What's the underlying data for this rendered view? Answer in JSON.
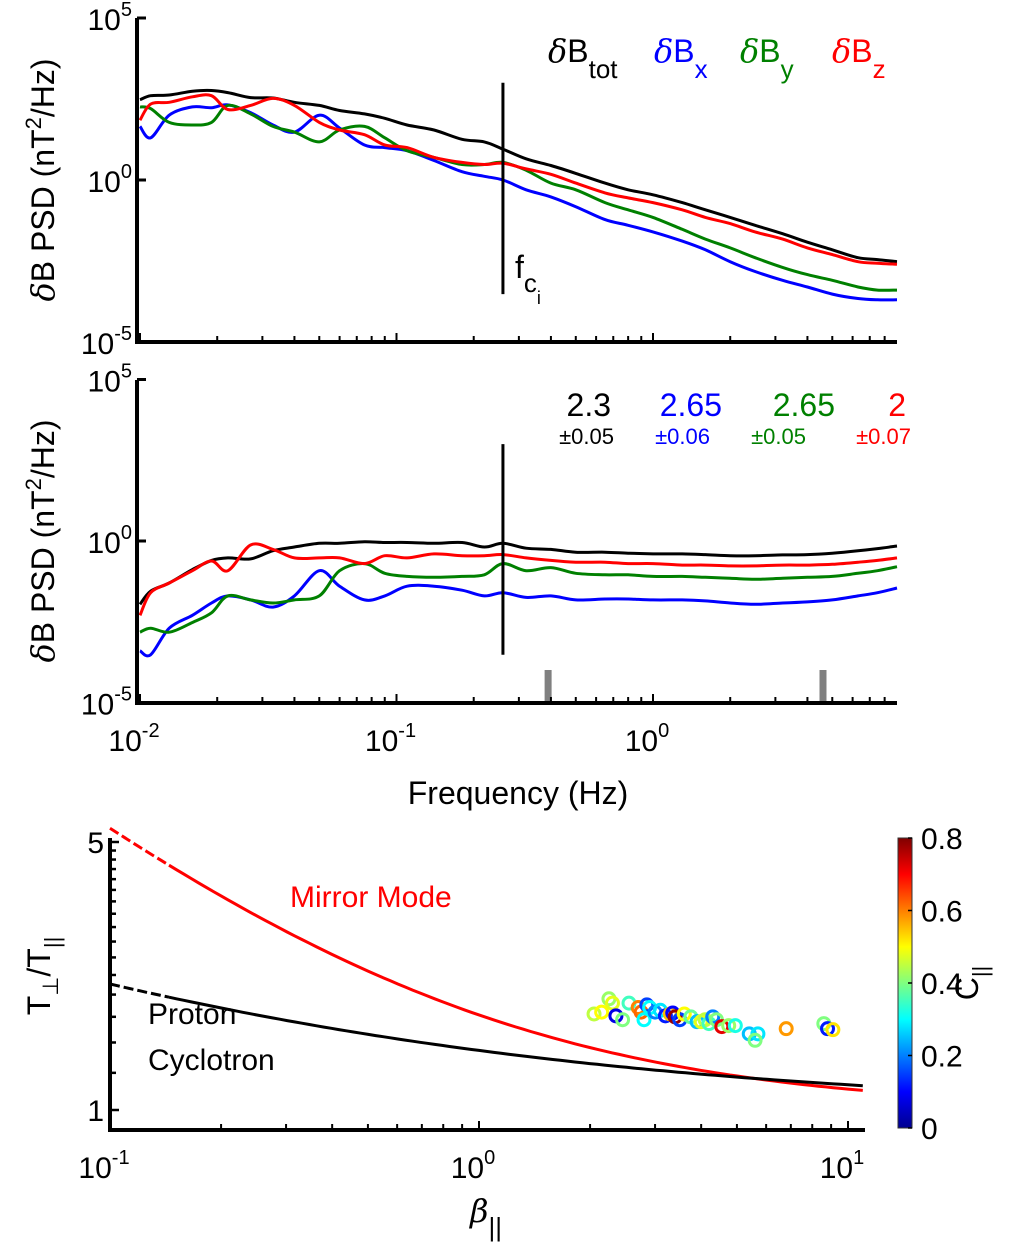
{
  "chart_data": [
    {
      "type": "line",
      "panel": "top",
      "xscale": "log",
      "yscale": "log",
      "xlim": [
        0.0095,
        9
      ],
      "ylim": [
        1e-05,
        100000.0
      ],
      "xlabel": "",
      "ylabel": "δB PSD (nT²/Hz)",
      "ylabel_parts": {
        "delta": "δ",
        "main": "B PSD (nT",
        "sup": "2",
        "tail": "/Hz)"
      },
      "yticks": [
        {
          "value": 100000.0,
          "base": "10",
          "exp": "5"
        },
        {
          "value": 1,
          "base": "10",
          "exp": "0"
        },
        {
          "value": 1e-05,
          "base": "10",
          "exp": "-5"
        }
      ],
      "legend": [
        {
          "delta": "δ",
          "name": "B",
          "sub": "tot",
          "color": "#000000"
        },
        {
          "delta": "δ",
          "name": "B",
          "sub": "x",
          "color": "#0000ff"
        },
        {
          "delta": "δ",
          "name": "B",
          "sub": "y",
          "color": "#008000"
        },
        {
          "delta": "δ",
          "name": "B",
          "sub": "z",
          "color": "#ff0000"
        }
      ],
      "legend_position": "top-right",
      "vline": {
        "x": 0.26,
        "y_range": [
          0.0003,
          1000.0
        ],
        "label_main": "f",
        "label_sub": "c",
        "label_subsub": "i"
      },
      "series": [
        {
          "name": "δBtot",
          "color": "#000000",
          "x": [
            0.0095,
            0.011,
            0.013,
            0.016,
            0.019,
            0.022,
            0.027,
            0.033,
            0.04,
            0.05,
            0.06,
            0.075,
            0.09,
            0.11,
            0.14,
            0.18,
            0.22,
            0.26,
            0.32,
            0.4,
            0.5,
            0.65,
            0.8,
            1.0,
            1.3,
            1.6,
            2.0,
            2.5,
            3.2,
            4.0,
            5.0,
            6.3,
            7.5,
            9.0
          ],
          "y": [
            300,
            400,
            420,
            550,
            580,
            500,
            350,
            340,
            250,
            200,
            140,
            110,
            80,
            50,
            35,
            18,
            15,
            9,
            4.5,
            2.8,
            1.6,
            0.8,
            0.5,
            0.35,
            0.2,
            0.12,
            0.07,
            0.04,
            0.022,
            0.012,
            0.007,
            0.004,
            0.0035,
            0.003
          ]
        },
        {
          "name": "δBx",
          "color": "#0000ff",
          "x": [
            0.0095,
            0.011,
            0.013,
            0.016,
            0.019,
            0.022,
            0.027,
            0.033,
            0.04,
            0.05,
            0.06,
            0.075,
            0.09,
            0.11,
            0.14,
            0.18,
            0.22,
            0.26,
            0.32,
            0.4,
            0.5,
            0.65,
            0.8,
            1.0,
            1.3,
            1.6,
            2.0,
            2.5,
            3.2,
            4.0,
            5.0,
            6.3,
            7.5,
            9.0
          ],
          "y": [
            45,
            20,
            100,
            180,
            170,
            210,
            120,
            50,
            30,
            100,
            40,
            12,
            10,
            8,
            4,
            1.8,
            1.3,
            1.0,
            0.5,
            0.3,
            0.15,
            0.06,
            0.04,
            0.025,
            0.013,
            0.007,
            0.003,
            0.0015,
            0.0008,
            0.0005,
            0.0003,
            0.00022,
            0.0002,
            0.0002
          ]
        },
        {
          "name": "δBy",
          "color": "#008000",
          "x": [
            0.0095,
            0.011,
            0.013,
            0.016,
            0.019,
            0.022,
            0.027,
            0.033,
            0.04,
            0.05,
            0.06,
            0.075,
            0.09,
            0.11,
            0.14,
            0.18,
            0.22,
            0.26,
            0.32,
            0.4,
            0.5,
            0.65,
            0.8,
            1.0,
            1.3,
            1.6,
            2.0,
            2.5,
            3.2,
            4.0,
            5.0,
            6.3,
            7.5,
            9.0
          ],
          "y": [
            180,
            160,
            60,
            50,
            60,
            200,
            110,
            45,
            30,
            15,
            35,
            45,
            20,
            8,
            5,
            3,
            3,
            3.5,
            2.0,
            0.8,
            0.5,
            0.2,
            0.12,
            0.07,
            0.03,
            0.015,
            0.008,
            0.004,
            0.002,
            0.0012,
            0.0008,
            0.0005,
            0.0004,
            0.0004
          ]
        },
        {
          "name": "δBz",
          "color": "#ff0000",
          "x": [
            0.0095,
            0.011,
            0.013,
            0.016,
            0.019,
            0.022,
            0.027,
            0.033,
            0.04,
            0.05,
            0.06,
            0.075,
            0.09,
            0.11,
            0.14,
            0.18,
            0.22,
            0.26,
            0.32,
            0.4,
            0.5,
            0.65,
            0.8,
            1.0,
            1.3,
            1.6,
            2.0,
            2.5,
            3.2,
            4.0,
            5.0,
            6.3,
            7.5,
            9.0
          ],
          "y": [
            70,
            220,
            250,
            370,
            400,
            150,
            200,
            330,
            200,
            60,
            35,
            25,
            12,
            10,
            5,
            3.5,
            3.0,
            3.3,
            2.2,
            1.5,
            0.8,
            0.4,
            0.28,
            0.2,
            0.12,
            0.07,
            0.045,
            0.025,
            0.015,
            0.008,
            0.005,
            0.003,
            0.0027,
            0.0025
          ]
        }
      ]
    },
    {
      "type": "line",
      "panel": "middle",
      "xscale": "log",
      "yscale": "log",
      "xlim": [
        0.0095,
        9
      ],
      "ylim": [
        1e-05,
        100000.0
      ],
      "xlabel": "Frequency (Hz)",
      "ylabel": "δB PSD (nT²/Hz)",
      "ylabel_parts": {
        "delta": "δ",
        "main": "B PSD (nT",
        "sup": "2",
        "tail": "/Hz)"
      },
      "xticks": [
        {
          "value": 0.01,
          "base": "10",
          "exp": "-2"
        },
        {
          "value": 0.1,
          "base": "10",
          "exp": "-1"
        },
        {
          "value": 1,
          "base": "10",
          "exp": "0"
        }
      ],
      "yticks": [
        {
          "value": 100000.0,
          "base": "10",
          "exp": "5"
        },
        {
          "value": 1,
          "base": "10",
          "exp": "0"
        },
        {
          "value": 1e-05,
          "base": "10",
          "exp": "-5"
        }
      ],
      "slopes": [
        {
          "value": "2.3",
          "error": "±0.05",
          "color": "#000000"
        },
        {
          "value": "2.65",
          "error": "±0.06",
          "color": "#0000ff"
        },
        {
          "value": "2.65",
          "error": "±0.05",
          "color": "#008000"
        },
        {
          "value": "2",
          "error": "±0.07",
          "color": "#ff0000"
        }
      ],
      "vline": {
        "x": 0.26,
        "y_range": [
          0.0003,
          1000.0
        ]
      },
      "fit_range_markers": [
        0.39,
        4.6
      ],
      "series": [
        {
          "name": "δBtot (compensated)",
          "color": "#000000",
          "x": [
            0.0095,
            0.011,
            0.013,
            0.016,
            0.019,
            0.022,
            0.027,
            0.033,
            0.04,
            0.05,
            0.06,
            0.075,
            0.09,
            0.11,
            0.14,
            0.18,
            0.22,
            0.26,
            0.32,
            0.4,
            0.5,
            0.65,
            0.8,
            1.0,
            1.3,
            1.6,
            2.0,
            2.5,
            3.2,
            4.0,
            5.0,
            6.3,
            7.5,
            9.0
          ],
          "y": [
            0.011,
            0.028,
            0.05,
            0.13,
            0.25,
            0.3,
            0.28,
            0.5,
            0.65,
            0.85,
            0.85,
            0.95,
            0.9,
            0.9,
            0.85,
            0.9,
            0.65,
            0.85,
            0.6,
            0.55,
            0.45,
            0.45,
            0.42,
            0.4,
            0.4,
            0.38,
            0.35,
            0.35,
            0.37,
            0.38,
            0.42,
            0.5,
            0.58,
            0.7
          ]
        },
        {
          "name": "δBx (compensated)",
          "color": "#0000ff",
          "x": [
            0.0095,
            0.011,
            0.013,
            0.016,
            0.019,
            0.022,
            0.027,
            0.033,
            0.04,
            0.05,
            0.06,
            0.075,
            0.09,
            0.11,
            0.14,
            0.18,
            0.22,
            0.26,
            0.32,
            0.4,
            0.5,
            0.65,
            0.8,
            1.0,
            1.3,
            1.6,
            2.0,
            2.5,
            3.2,
            4.0,
            5.0,
            6.3,
            7.5,
            9.0
          ],
          "y": [
            0.0004,
            0.0003,
            0.002,
            0.005,
            0.012,
            0.02,
            0.015,
            0.009,
            0.02,
            0.12,
            0.04,
            0.015,
            0.02,
            0.04,
            0.04,
            0.03,
            0.02,
            0.025,
            0.018,
            0.02,
            0.015,
            0.016,
            0.016,
            0.015,
            0.015,
            0.014,
            0.012,
            0.011,
            0.012,
            0.013,
            0.015,
            0.02,
            0.025,
            0.035
          ]
        },
        {
          "name": "δBy (compensated)",
          "color": "#008000",
          "x": [
            0.0095,
            0.011,
            0.013,
            0.016,
            0.019,
            0.022,
            0.027,
            0.033,
            0.04,
            0.05,
            0.06,
            0.075,
            0.09,
            0.11,
            0.14,
            0.18,
            0.22,
            0.26,
            0.32,
            0.4,
            0.5,
            0.65,
            0.8,
            1.0,
            1.3,
            1.6,
            2.0,
            2.5,
            3.2,
            4.0,
            5.0,
            6.3,
            7.5,
            9.0
          ],
          "y": [
            0.0015,
            0.002,
            0.0015,
            0.003,
            0.006,
            0.02,
            0.015,
            0.012,
            0.015,
            0.02,
            0.12,
            0.2,
            0.1,
            0.08,
            0.075,
            0.08,
            0.09,
            0.2,
            0.12,
            0.15,
            0.1,
            0.09,
            0.09,
            0.08,
            0.08,
            0.075,
            0.07,
            0.065,
            0.07,
            0.075,
            0.08,
            0.1,
            0.12,
            0.16
          ]
        },
        {
          "name": "δBz (compensated)",
          "color": "#ff0000",
          "x": [
            0.0095,
            0.011,
            0.013,
            0.016,
            0.019,
            0.022,
            0.027,
            0.033,
            0.04,
            0.05,
            0.06,
            0.075,
            0.09,
            0.11,
            0.14,
            0.18,
            0.22,
            0.26,
            0.32,
            0.4,
            0.5,
            0.65,
            0.8,
            1.0,
            1.3,
            1.6,
            2.0,
            2.5,
            3.2,
            4.0,
            5.0,
            6.3,
            7.5,
            9.0
          ],
          "y": [
            0.005,
            0.025,
            0.05,
            0.12,
            0.24,
            0.12,
            0.75,
            0.55,
            0.3,
            0.3,
            0.3,
            0.2,
            0.35,
            0.3,
            0.4,
            0.35,
            0.35,
            0.38,
            0.3,
            0.25,
            0.22,
            0.22,
            0.2,
            0.2,
            0.18,
            0.18,
            0.17,
            0.17,
            0.18,
            0.18,
            0.19,
            0.22,
            0.25,
            0.3
          ]
        }
      ]
    },
    {
      "type": "scatter",
      "panel": "bottom",
      "xscale": "log",
      "yscale": "log",
      "xlim": [
        0.1,
        11
      ],
      "ylim": [
        0.93,
        5
      ],
      "xlabel_parts": {
        "beta": "β",
        "sub": "||"
      },
      "ylabel_parts": {
        "main": "T",
        "sub1": "⊥",
        "slash": "/T",
        "sub2": "||"
      },
      "xticks": [
        {
          "value": 0.1,
          "base": "10",
          "exp": "-1"
        },
        {
          "value": 1,
          "base": "10",
          "exp": "0"
        },
        {
          "value": 10,
          "base": "10",
          "exp": "1"
        }
      ],
      "yticks": [
        {
          "value": 5,
          "label": "5"
        },
        {
          "value": 1,
          "label": "1"
        }
      ],
      "threshold_curves": [
        {
          "name": "Mirror Mode",
          "color": "#ff0000",
          "label_color": "#ff0000",
          "a": 0.77,
          "b": 0.76,
          "dashed_below": 0.14
        },
        {
          "name": "Proton Cyclotron",
          "label_lines": [
            "Proton",
            "Cyclotron"
          ],
          "color": "#000000",
          "label_color": "#000000",
          "a": 0.43,
          "b": 0.42,
          "dashed_below": 0.14
        }
      ],
      "colorbar": {
        "label": "C",
        "label_sub": "||",
        "range": [
          0,
          0.8
        ],
        "ticks": [
          "0",
          "0.2",
          "0.4",
          "0.6",
          "0.8"
        ],
        "colormap": "jet"
      },
      "points": [
        {
          "x": 2.05,
          "y": 1.78,
          "c": 0.45
        },
        {
          "x": 2.15,
          "y": 1.8,
          "c": 0.5
        },
        {
          "x": 2.25,
          "y": 1.95,
          "c": 0.42
        },
        {
          "x": 2.3,
          "y": 1.9,
          "c": 0.48
        },
        {
          "x": 2.35,
          "y": 1.76,
          "c": 0.08
        },
        {
          "x": 2.45,
          "y": 1.72,
          "c": 0.4
        },
        {
          "x": 2.55,
          "y": 1.9,
          "c": 0.35
        },
        {
          "x": 2.7,
          "y": 1.85,
          "c": 0.6
        },
        {
          "x": 2.75,
          "y": 1.8,
          "c": 0.62
        },
        {
          "x": 2.8,
          "y": 1.72,
          "c": 0.3
        },
        {
          "x": 2.85,
          "y": 1.88,
          "c": 0.15
        },
        {
          "x": 2.9,
          "y": 1.85,
          "c": 0.3
        },
        {
          "x": 3.0,
          "y": 1.8,
          "c": 0.2
        },
        {
          "x": 3.1,
          "y": 1.82,
          "c": 0.28
        },
        {
          "x": 3.2,
          "y": 1.76,
          "c": 0.12
        },
        {
          "x": 3.3,
          "y": 1.78,
          "c": 0.55
        },
        {
          "x": 3.35,
          "y": 1.79,
          "c": 0.1
        },
        {
          "x": 3.4,
          "y": 1.75,
          "c": 0.78
        },
        {
          "x": 3.5,
          "y": 1.72,
          "c": 0.15
        },
        {
          "x": 3.6,
          "y": 1.78,
          "c": 0.5
        },
        {
          "x": 3.75,
          "y": 1.75,
          "c": 0.38
        },
        {
          "x": 3.9,
          "y": 1.7,
          "c": 0.25
        },
        {
          "x": 4.0,
          "y": 1.7,
          "c": 0.48
        },
        {
          "x": 4.1,
          "y": 1.72,
          "c": 0.45
        },
        {
          "x": 4.2,
          "y": 1.68,
          "c": 0.35
        },
        {
          "x": 4.3,
          "y": 1.75,
          "c": 0.2
        },
        {
          "x": 4.4,
          "y": 1.72,
          "c": 0.4
        },
        {
          "x": 4.55,
          "y": 1.65,
          "c": 0.72
        },
        {
          "x": 4.75,
          "y": 1.66,
          "c": 0.42
        },
        {
          "x": 4.95,
          "y": 1.66,
          "c": 0.32
        },
        {
          "x": 5.4,
          "y": 1.58,
          "c": 0.25
        },
        {
          "x": 5.7,
          "y": 1.58,
          "c": 0.28
        },
        {
          "x": 5.6,
          "y": 1.52,
          "c": 0.4
        },
        {
          "x": 6.8,
          "y": 1.63,
          "c": 0.58
        },
        {
          "x": 8.6,
          "y": 1.68,
          "c": 0.4
        },
        {
          "x": 8.8,
          "y": 1.63,
          "c": 0.12
        },
        {
          "x": 9.1,
          "y": 1.62,
          "c": 0.52
        }
      ]
    }
  ]
}
